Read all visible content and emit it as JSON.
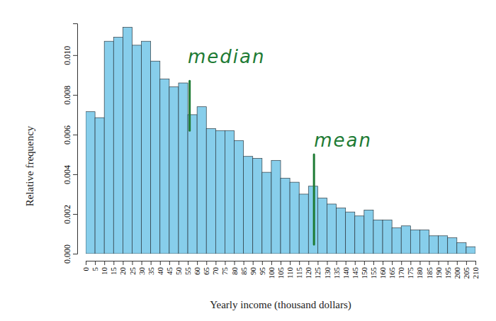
{
  "chart_data": {
    "type": "histogram",
    "x_label": "Yearly income (thousand dollars)",
    "y_label": "Relative frequency",
    "bins": [
      0,
      5,
      10,
      15,
      20,
      25,
      30,
      35,
      40,
      45,
      50,
      55,
      60,
      65,
      70,
      75,
      80,
      85,
      90,
      95,
      100,
      105,
      110,
      115,
      120,
      125,
      130,
      135,
      140,
      145,
      150,
      155,
      160,
      165,
      170,
      175,
      180,
      185,
      190,
      195,
      200,
      205,
      210
    ],
    "counts": [
      0.00715,
      0.00685,
      0.0107,
      0.0109,
      0.0114,
      0.0105,
      0.0107,
      0.0097,
      0.0088,
      0.0084,
      0.0086,
      0.007,
      0.0074,
      0.0063,
      0.0062,
      0.0062,
      0.0057,
      0.0049,
      0.0048,
      0.0041,
      0.0047,
      0.0038,
      0.0036,
      0.003,
      0.0034,
      0.0028,
      0.0025,
      0.0023,
      0.0021,
      0.0019,
      0.0022,
      0.0017,
      0.0017,
      0.0013,
      0.0014,
      0.0012,
      0.0012,
      0.0009,
      0.0009,
      0.0008,
      0.00055,
      0.00035
    ],
    "color": "#87ceeb",
    "xlim": [
      0,
      210
    ],
    "xticks": [
      0,
      5,
      10,
      15,
      20,
      25,
      30,
      35,
      40,
      45,
      50,
      55,
      60,
      65,
      70,
      75,
      80,
      85,
      90,
      95,
      100,
      105,
      110,
      115,
      120,
      125,
      130,
      135,
      140,
      145,
      150,
      155,
      160,
      165,
      170,
      175,
      180,
      185,
      190,
      195,
      200,
      205,
      210
    ],
    "ylim": [
      0,
      0.0116
    ],
    "yticks": [
      {
        "value": 0,
        "label": "0.000"
      },
      {
        "value": 0.002,
        "label": "0.002"
      },
      {
        "value": 0.004,
        "label": "0.004"
      },
      {
        "value": 0.006,
        "label": "0.006"
      },
      {
        "value": 0.008,
        "label": "0.008"
      },
      {
        "value": 0.01,
        "label": "0.010"
      }
    ],
    "annotations": [
      {
        "text": "median",
        "text_x": 55,
        "text_y": 0.0096,
        "line_x": 56,
        "line_y": [
          0.0062,
          0.0087
        ],
        "color": "#1e7b34"
      },
      {
        "text": "mean",
        "text_x": 123,
        "text_y": 0.0054,
        "line_x": 123,
        "line_y": [
          0.00046,
          0.005
        ],
        "color": "#1e7b34"
      }
    ]
  }
}
